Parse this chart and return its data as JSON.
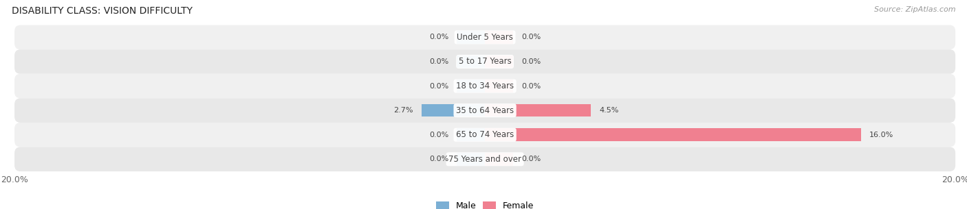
{
  "title": "DISABILITY CLASS: VISION DIFFICULTY",
  "source": "Source: ZipAtlas.com",
  "categories": [
    "Under 5 Years",
    "5 to 17 Years",
    "18 to 34 Years",
    "35 to 64 Years",
    "65 to 74 Years",
    "75 Years and over"
  ],
  "male_values": [
    0.0,
    0.0,
    0.0,
    2.7,
    0.0,
    0.0
  ],
  "female_values": [
    0.0,
    0.0,
    0.0,
    4.5,
    16.0,
    0.0
  ],
  "male_color": "#7bafd4",
  "female_color": "#f08090",
  "row_colors": [
    "#f0f0f0",
    "#e8e8e8"
  ],
  "xlim": 20.0,
  "stub_size": 1.2,
  "bar_height": 0.52,
  "label_fontsize": 8.5,
  "title_fontsize": 10,
  "source_fontsize": 8,
  "value_fontsize": 8,
  "bg_color": "#ffffff",
  "text_color": "#444444",
  "axis_label_color": "#666666"
}
